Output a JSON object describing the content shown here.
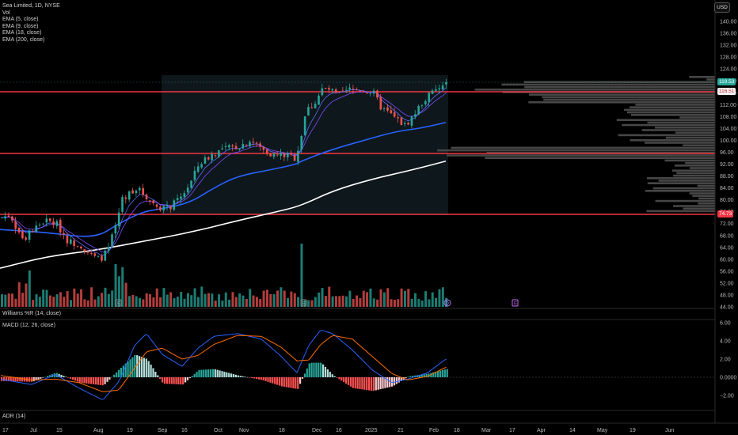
{
  "legend": {
    "symbol": "Sea Limited, 1D, NYSE",
    "vol": "Vol",
    "ema5": "EMA (5, close)",
    "ema9": "EMA (9, close)",
    "ema18": "EMA (18, close)",
    "ema200": "EMA (200, close)"
  },
  "currency": "USD",
  "price_axis": [
    "140.00",
    "136.00",
    "132.00",
    "128.00",
    "124.00",
    "120.00",
    "116.00",
    "112.00",
    "108.00",
    "104.00",
    "100.00",
    "96.00",
    "92.00",
    "88.00",
    "84.00",
    "80.00",
    "76.00",
    "72.00",
    "68.00",
    "64.00",
    "60.00",
    "56.00",
    "52.00",
    "48.00",
    "44.00"
  ],
  "price_badges": {
    "last": "119.53",
    "level_high": "116.51",
    "level_low": "74.73"
  },
  "panes": {
    "williams": "Williams %R (14, close)",
    "macd": "MACD (12, 26, close)",
    "adr": "ADR (14)"
  },
  "macd_axis": [
    "6.00",
    "4.00",
    "2.00",
    "0.0000",
    "−2.00"
  ],
  "time_axis": [
    "17",
    "Jul",
    "15",
    "Aug",
    "19",
    "Sep",
    "16",
    "Oct",
    "Nov",
    "18",
    "Dec",
    "16",
    "2025",
    "21",
    "Feb",
    "18",
    "Mar",
    "17",
    "Apr",
    "14",
    "May",
    "19",
    "Jun"
  ],
  "markers": {
    "earnings": "E",
    "dividend": "D"
  },
  "colors": {
    "up": "#26a69a",
    "down": "#ef5350",
    "level_line": "#f23645",
    "ema200": "#ffffff",
    "ema_blue": "#2962ff",
    "macd_line": "#2962ff",
    "signal_line": "#ff6d00"
  },
  "chart_data": {
    "type": "candlestick",
    "title": "Sea Limited, 1D, NYSE",
    "ylim": [
      44,
      142
    ],
    "horizontal_levels": [
      116.51,
      95.5,
      74.73
    ],
    "last_price": 119.53,
    "close_path": [
      {
        "date": "Jun 17",
        "close": 74
      },
      {
        "date": "Jul 1",
        "close": 70
      },
      {
        "date": "Jul 15",
        "close": 73
      },
      {
        "date": "Jul 29",
        "close": 66
      },
      {
        "date": "Aug 5",
        "close": 60
      },
      {
        "date": "Aug 9",
        "close": 72
      },
      {
        "date": "Aug 19",
        "close": 83
      },
      {
        "date": "Sep 3",
        "close": 78
      },
      {
        "date": "Sep 16",
        "close": 90
      },
      {
        "date": "Oct 1",
        "close": 97
      },
      {
        "date": "Oct 15",
        "close": 100
      },
      {
        "date": "Nov 1",
        "close": 96
      },
      {
        "date": "Nov 12",
        "close": 110
      },
      {
        "date": "Dec 2",
        "close": 117
      },
      {
        "date": "Dec 16",
        "close": 117
      },
      {
        "date": "Dec 31",
        "close": 107
      },
      {
        "date": "Jan 21",
        "close": 116
      },
      {
        "date": "Jan 24",
        "close": 119.53
      }
    ],
    "ema200_path": [
      {
        "date": "Jun 17",
        "close": 57
      },
      {
        "date": "Aug 19",
        "close": 63
      },
      {
        "date": "Oct 15",
        "close": 70
      },
      {
        "date": "Nov 18",
        "close": 75
      },
      {
        "date": "Dec 16",
        "close": 82
      },
      {
        "date": "Jan 24",
        "close": 91
      }
    ],
    "macd_ylim": [
      -3.5,
      6.5
    ]
  }
}
